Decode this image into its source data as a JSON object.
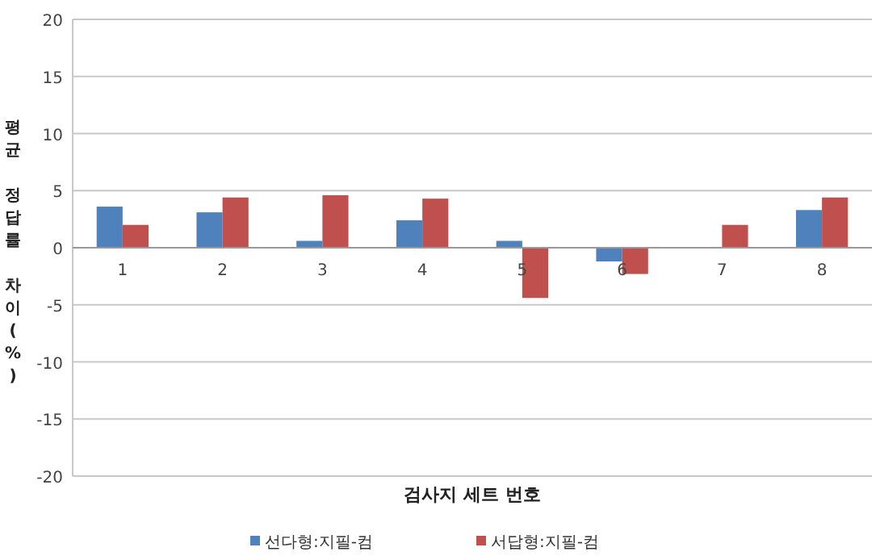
{
  "chart_data": {
    "type": "bar",
    "xlabel": "검사지 세트 번호",
    "ylabel": "평균 정답률 차이(%)",
    "categories": [
      "1",
      "2",
      "3",
      "4",
      "5",
      "6",
      "7",
      "8"
    ],
    "series": [
      {
        "name": "선다형:지필-컴",
        "color": "#4f81bd",
        "values": [
          3.6,
          3.1,
          0.6,
          2.4,
          0.6,
          -1.2,
          0,
          3.3
        ]
      },
      {
        "name": "서답형:지필-컴",
        "color": "#c0504d",
        "values": [
          2.0,
          4.4,
          4.6,
          4.3,
          -4.4,
          -2.3,
          2.0,
          4.4
        ]
      }
    ],
    "ylim": [
      -20,
      20
    ],
    "yticks": [
      -20,
      -15,
      -10,
      -5,
      0,
      5,
      10,
      15,
      20
    ],
    "grid": "y",
    "legend": "bottom"
  }
}
